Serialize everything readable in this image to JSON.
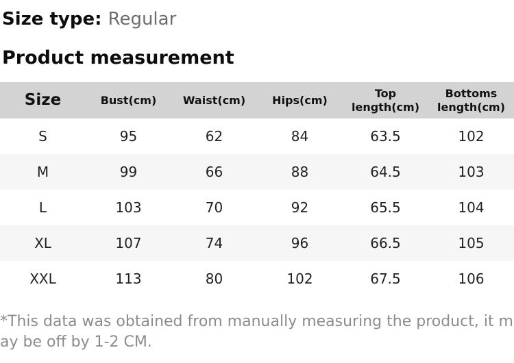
{
  "size_type": {
    "label": "Size type:",
    "value": "Regular"
  },
  "section_title": "Product measurement",
  "table": {
    "columns": [
      "Size",
      "Bust(cm)",
      "Waist(cm)",
      "Hips(cm)",
      "Top length(cm)",
      "Bottoms length(cm)"
    ],
    "rows": [
      {
        "size": "S",
        "values": [
          "95",
          "62",
          "84",
          "63.5",
          "102"
        ]
      },
      {
        "size": "M",
        "values": [
          "99",
          "66",
          "88",
          "64.5",
          "103"
        ]
      },
      {
        "size": "L",
        "values": [
          "103",
          "70",
          "92",
          "65.5",
          "104"
        ]
      },
      {
        "size": "XL",
        "values": [
          "107",
          "74",
          "96",
          "66.5",
          "105"
        ]
      },
      {
        "size": "XXL",
        "values": [
          "113",
          "80",
          "102",
          "67.5",
          "106"
        ]
      }
    ]
  },
  "footnote": "*This data was obtained from manually measuring the product, it may be off by 1-2 CM.",
  "colors": {
    "header_bg": "#d3d3d3",
    "alt_row_bg": "#f6f6f6",
    "heading_text": "#0d0d0d",
    "value_gray": "#6d6d6d",
    "footnote_gray": "#8c8c8c",
    "cell_text": "#1f1f1f"
  }
}
